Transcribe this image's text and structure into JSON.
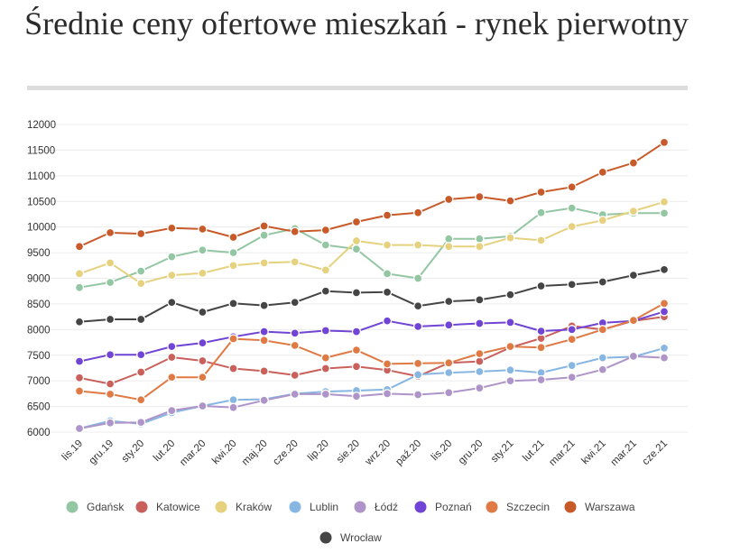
{
  "chart_data": {
    "type": "line",
    "title": "Średnie ceny ofertowe mieszkań - rynek pierwotny",
    "xlabel": "",
    "ylabel": "",
    "ylim": [
      6000,
      12000
    ],
    "yticks": [
      6000,
      6500,
      7000,
      7500,
      8000,
      8500,
      9000,
      9500,
      10000,
      10500,
      11000,
      11500,
      12000
    ],
    "grid": true,
    "legend_position": "bottom",
    "categories": [
      "lis.19",
      "gru.19",
      "sty.20",
      "lut.20",
      "mar.20",
      "kwi.20",
      "maj.20",
      "cze.20",
      "lip.20",
      "sie.20",
      "wrz.20",
      "paź.20",
      "lis.20",
      "gru.20",
      "sty.21",
      "lut.21",
      "mar.21",
      "kwi.21",
      "mar.21",
      "cze.21"
    ],
    "series": [
      {
        "name": "Gdańsk",
        "color": "#93c6a2",
        "values": [
          8820,
          8920,
          9140,
          9420,
          9550,
          9500,
          9840,
          9970,
          9650,
          9570,
          9090,
          9000,
          9770,
          9770,
          9820,
          10280,
          10370,
          10240,
          10270,
          10270
        ]
      },
      {
        "name": "Katowice",
        "color": "#c9605b",
        "values": [
          7060,
          6940,
          7170,
          7460,
          7390,
          7240,
          7190,
          7110,
          7240,
          7280,
          7210,
          7090,
          7350,
          7380,
          7650,
          7830,
          8070,
          8000,
          8170,
          8250
        ]
      },
      {
        "name": "Kraków",
        "color": "#e5d17e",
        "values": [
          9090,
          9300,
          8900,
          9060,
          9100,
          9250,
          9300,
          9320,
          9160,
          9730,
          9650,
          9650,
          9620,
          9620,
          9790,
          9740,
          10010,
          10130,
          10310,
          10490
        ]
      },
      {
        "name": "Lublin",
        "color": "#88b6e2",
        "values": [
          6070,
          6220,
          6160,
          6380,
          6510,
          6630,
          6640,
          6750,
          6790,
          6810,
          6830,
          7120,
          7160,
          7180,
          7210,
          7160,
          7300,
          7450,
          7470,
          7640
        ]
      },
      {
        "name": "Łódź",
        "color": "#ae94c8",
        "values": [
          6070,
          6180,
          6190,
          6420,
          6510,
          6480,
          6620,
          6740,
          6740,
          6700,
          6750,
          6730,
          6770,
          6860,
          7000,
          7020,
          7070,
          7220,
          7480,
          7450
        ]
      },
      {
        "name": "Poznań",
        "color": "#7044d4",
        "values": [
          7380,
          7510,
          7510,
          7670,
          7740,
          7860,
          7960,
          7930,
          7980,
          7960,
          8170,
          8060,
          8090,
          8120,
          8140,
          7970,
          8000,
          8130,
          8170,
          8350
        ]
      },
      {
        "name": "Szczecin",
        "color": "#e07a44",
        "values": [
          6800,
          6740,
          6630,
          7070,
          7070,
          7820,
          7790,
          7690,
          7450,
          7600,
          7330,
          7340,
          7350,
          7530,
          7670,
          7650,
          7810,
          8000,
          8180,
          8510
        ]
      },
      {
        "name": "Warszawa",
        "color": "#c85a2a",
        "values": [
          9620,
          9890,
          9870,
          9980,
          9960,
          9800,
          10020,
          9910,
          9940,
          10100,
          10230,
          10280,
          10540,
          10590,
          10510,
          10680,
          10780,
          11070,
          11250,
          11650
        ]
      },
      {
        "name": "Wrocław",
        "color": "#454545",
        "values": [
          8150,
          8200,
          8200,
          8530,
          8340,
          8510,
          8470,
          8530,
          8750,
          8720,
          8730,
          8460,
          8550,
          8580,
          8680,
          8850,
          8880,
          8930,
          9060,
          9170
        ]
      }
    ]
  }
}
